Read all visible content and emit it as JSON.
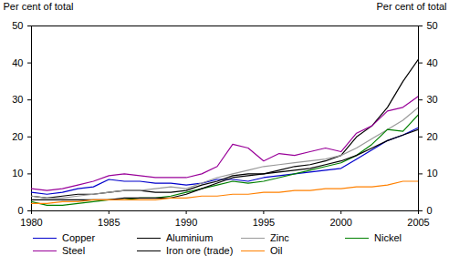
{
  "chart_data": {
    "type": "line",
    "y_label": "Per cent of total",
    "x": [
      1980,
      1981,
      1982,
      1983,
      1984,
      1985,
      1986,
      1987,
      1988,
      1989,
      1990,
      1991,
      1992,
      1993,
      1994,
      1995,
      1996,
      1997,
      1998,
      1999,
      2000,
      2001,
      2002,
      2003,
      2004,
      2005
    ],
    "xlim": [
      1980,
      2005
    ],
    "xticks": [
      1980,
      1985,
      1990,
      1995,
      2000,
      2005
    ],
    "ylim": [
      0,
      50
    ],
    "yticks": [
      0,
      10,
      20,
      30,
      40,
      50
    ],
    "grid": false,
    "legend": "bottom",
    "series": [
      {
        "name": "Copper",
        "color": "#0000cc",
        "values": [
          5,
          4.5,
          5,
          6,
          6.5,
          8.5,
          8,
          8,
          7.5,
          7.5,
          7,
          7.5,
          8.5,
          8.5,
          8,
          9,
          9.5,
          10,
          10.5,
          11,
          11.5,
          14,
          16.5,
          19,
          20.5,
          22.5
        ]
      },
      {
        "name": "Aluminium",
        "color": "#000000",
        "values": [
          4,
          3.5,
          4,
          4.5,
          4.5,
          5,
          5.5,
          5.5,
          5,
          5,
          5.5,
          7,
          8,
          9.5,
          10,
          10,
          11,
          12,
          12.5,
          13.5,
          15,
          20,
          23,
          28,
          35,
          41
        ]
      },
      {
        "name": "Zinc",
        "color": "#999999",
        "values": [
          4,
          3.5,
          3.5,
          4,
          4.5,
          5,
          5.5,
          5.5,
          6,
          6.5,
          6,
          7.5,
          9,
          10,
          11,
          12,
          12.5,
          13,
          13.5,
          14,
          15,
          17,
          19.5,
          22,
          24.5,
          28
        ]
      },
      {
        "name": "Nickel",
        "color": "#008000",
        "values": [
          2.5,
          1.5,
          1.5,
          2,
          2.5,
          3,
          3,
          3.5,
          3.5,
          4,
          5,
          6,
          7,
          8,
          7.5,
          8,
          9,
          10,
          11,
          12,
          13,
          15,
          18,
          22,
          21.5,
          26
        ]
      },
      {
        "name": "Steel",
        "color": "#990099",
        "values": [
          6,
          5.5,
          6,
          7,
          8,
          9.5,
          10,
          9.5,
          9,
          9,
          9,
          10,
          12,
          18,
          17,
          13.5,
          15.5,
          15,
          16,
          17,
          16,
          21,
          23,
          27,
          28,
          31
        ]
      },
      {
        "name": "Iron ore (trade)",
        "color": "#000000",
        "values": [
          3,
          3,
          3,
          3,
          3,
          3,
          3.5,
          3.5,
          3.5,
          3.5,
          4.5,
          6,
          7.5,
          9,
          9.5,
          10,
          10.5,
          11,
          11.5,
          12.5,
          13.5,
          15,
          17,
          19,
          20.5,
          22
        ]
      },
      {
        "name": "Oil",
        "color": "#ff8000",
        "values": [
          2,
          2,
          2.5,
          2.5,
          3,
          3,
          3,
          3,
          3,
          3.5,
          3.5,
          4,
          4,
          4.5,
          4.5,
          5,
          5,
          5.5,
          5.5,
          6,
          6,
          6.5,
          6.5,
          7,
          8,
          8
        ]
      }
    ]
  }
}
